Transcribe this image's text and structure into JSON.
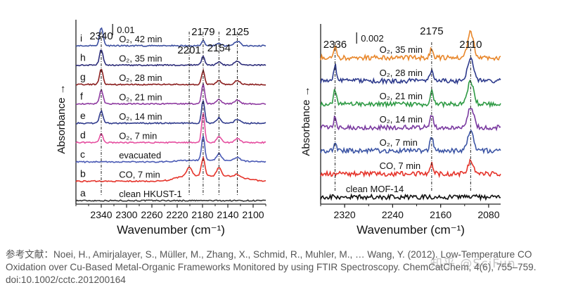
{
  "chart_data": [
    {
      "type": "line",
      "title": "",
      "xlabel": "Wavenumber (cm⁻¹)",
      "ylabel": "Absorbance →",
      "xlim": [
        2380,
        2080
      ],
      "x_ticks": [
        2340,
        2300,
        2260,
        2220,
        2180,
        2140,
        2100
      ],
      "x_tick_labels": [
        "2340",
        "2300",
        "2260",
        "2220",
        "2180",
        "2140",
        "2100"
      ],
      "scale_bar_label": "0.01",
      "markers": [
        {
          "label": "2340",
          "x": 2340
        },
        {
          "label": "2201",
          "x": 2201
        },
        {
          "label": "2179",
          "x": 2179
        },
        {
          "label": "2154",
          "x": 2154
        },
        {
          "label": "2125",
          "x": 2125
        }
      ],
      "series": [
        {
          "letter": "a",
          "name": "clean HKUST-1",
          "color": "#333333",
          "offset": 0,
          "peaks": [],
          "step": 0
        },
        {
          "letter": "b",
          "name": "CO, 7 min",
          "color": "#e5332a",
          "offset": 1,
          "peaks": [
            {
              "x": 2201,
              "h": 0.55,
              "w": 6
            },
            {
              "x": 2179,
              "h": 1.15,
              "w": 4
            },
            {
              "x": 2154,
              "h": 0.55,
              "w": 5
            },
            {
              "x": 2125,
              "h": 0.15,
              "w": 6
            }
          ],
          "step": 0.35
        },
        {
          "letter": "c",
          "name": "evacuated",
          "color": "#4a5ab5",
          "offset": 2,
          "peaks": [
            {
              "x": 2179,
              "h": 1.6,
              "w": 3.5
            },
            {
              "x": 2154,
              "h": 0.45,
              "w": 5
            },
            {
              "x": 2125,
              "h": 0.2,
              "w": 6
            }
          ],
          "step": 0.1
        },
        {
          "letter": "d",
          "name": "O₂, 7 min",
          "color": "#e54fa0",
          "offset": 3,
          "peaks": [
            {
              "x": 2340,
              "h": 0.55,
              "w": 4
            },
            {
              "x": 2179,
              "h": 1.9,
              "w": 3.5
            },
            {
              "x": 2154,
              "h": 0.4,
              "w": 5
            },
            {
              "x": 2125,
              "h": 0.25,
              "w": 6
            }
          ],
          "step": 0
        },
        {
          "letter": "e",
          "name": "O₂, 14 min",
          "color": "#2f3a8c",
          "offset": 4,
          "peaks": [
            {
              "x": 2340,
              "h": 0.8,
              "w": 4
            },
            {
              "x": 2179,
              "h": 1.5,
              "w": 3.5
            },
            {
              "x": 2154,
              "h": 0.35,
              "w": 5
            },
            {
              "x": 2125,
              "h": 0.25,
              "w": 6
            }
          ],
          "step": 0
        },
        {
          "letter": "f",
          "name": "O₂, 21 min",
          "color": "#8e3aa0",
          "offset": 5,
          "peaks": [
            {
              "x": 2340,
              "h": 0.9,
              "w": 4
            },
            {
              "x": 2179,
              "h": 1.3,
              "w": 3.5
            },
            {
              "x": 2154,
              "h": 0.3,
              "w": 5
            },
            {
              "x": 2125,
              "h": 0.25,
              "w": 6
            }
          ],
          "step": 0
        },
        {
          "letter": "g",
          "name": "O₂, 28 min",
          "color": "#8b1e1e",
          "offset": 6,
          "peaks": [
            {
              "x": 2340,
              "h": 1.0,
              "w": 4
            },
            {
              "x": 2179,
              "h": 0.9,
              "w": 3.5
            },
            {
              "x": 2154,
              "h": 0.25,
              "w": 5
            },
            {
              "x": 2125,
              "h": 0.25,
              "w": 6
            }
          ],
          "step": 0
        },
        {
          "letter": "h",
          "name": "O₂, 35 min",
          "color": "#2d2d7a",
          "offset": 7,
          "peaks": [
            {
              "x": 2340,
              "h": 1.0,
              "w": 4
            },
            {
              "x": 2179,
              "h": 0.6,
              "w": 3.5
            },
            {
              "x": 2154,
              "h": 0.2,
              "w": 5
            },
            {
              "x": 2125,
              "h": 0.25,
              "w": 6
            }
          ],
          "step": 0
        },
        {
          "letter": "i",
          "name": "O₂, 42 min",
          "color": "#3c4fa0",
          "offset": 8,
          "peaks": [
            {
              "x": 2340,
              "h": 1.2,
              "w": 4
            },
            {
              "x": 2179,
              "h": 0.35,
              "w": 3.5
            },
            {
              "x": 2154,
              "h": 0.15,
              "w": 5
            },
            {
              "x": 2125,
              "h": 0.3,
              "w": 6
            }
          ],
          "step": 0
        }
      ]
    },
    {
      "type": "line",
      "title": "",
      "xlabel": "Wavenumber (cm⁻¹)",
      "ylabel": "Absorbance →",
      "xlim": [
        2360,
        2060
      ],
      "x_ticks": [
        2320,
        2240,
        2160,
        2080
      ],
      "x_tick_labels": [
        "2320",
        "2240",
        "2160",
        "2080"
      ],
      "scale_bar_label": "0.002",
      "markers": [
        {
          "label": "2336",
          "x": 2336
        },
        {
          "label": "2175",
          "x": 2175
        },
        {
          "label": "2110",
          "x": 2110
        }
      ],
      "series": [
        {
          "name": "clean MOF-14",
          "color": "#111111",
          "offset": 0,
          "peaks": []
        },
        {
          "name": "CO, 7 min",
          "color": "#e5332a",
          "offset": 1,
          "peaks": [
            {
              "x": 2175,
              "h": 0.5,
              "w": 4
            },
            {
              "x": 2110,
              "h": 0.6,
              "w": 7
            }
          ]
        },
        {
          "name": "O₂, 7 min",
          "color": "#3c55a5",
          "offset": 2,
          "peaks": [
            {
              "x": 2336,
              "h": 0.3,
              "w": 3
            },
            {
              "x": 2175,
              "h": 0.6,
              "w": 4
            },
            {
              "x": 2110,
              "h": 0.9,
              "w": 7
            }
          ]
        },
        {
          "name": "O₂, 14 min",
          "color": "#7a3aa0",
          "offset": 3,
          "peaks": [
            {
              "x": 2336,
              "h": 0.5,
              "w": 3
            },
            {
              "x": 2175,
              "h": 0.6,
              "w": 4
            },
            {
              "x": 2110,
              "h": 1.0,
              "w": 7
            }
          ]
        },
        {
          "name": "O₂, 21 min",
          "color": "#2e9a44",
          "offset": 4,
          "peaks": [
            {
              "x": 2336,
              "h": 0.7,
              "w": 3
            },
            {
              "x": 2175,
              "h": 0.6,
              "w": 4
            },
            {
              "x": 2110,
              "h": 1.1,
              "w": 7
            }
          ]
        },
        {
          "name": "O₂, 28 min",
          "color": "#2d3a8c",
          "offset": 5,
          "peaks": [
            {
              "x": 2336,
              "h": 0.8,
              "w": 3
            },
            {
              "x": 2175,
              "h": 0.5,
              "w": 4
            },
            {
              "x": 2110,
              "h": 1.1,
              "w": 7
            }
          ]
        },
        {
          "name": "O₂, 35 min",
          "color": "#e8862a",
          "offset": 6,
          "peaks": [
            {
              "x": 2336,
              "h": 0.6,
              "w": 3
            },
            {
              "x": 2175,
              "h": 0.4,
              "w": 4
            },
            {
              "x": 2110,
              "h": 1.2,
              "w": 7
            }
          ]
        }
      ]
    }
  ],
  "caption": {
    "text": "参考文献：Noei, H., Amirjalayer, S., Müller, M., Zhang, X., Schmid, R., Muhler, M., … Wang, Y. (2012). Low-Temperature CO Oxidation over Cu-Based Metal-Organic Frameworks Monitored by using FTIR Spectroscopy. ChemCatChem, 4(6), 755–759. doi:10.1002/cctc.201200164"
  },
  "watermark": "知乎 @SciFun"
}
